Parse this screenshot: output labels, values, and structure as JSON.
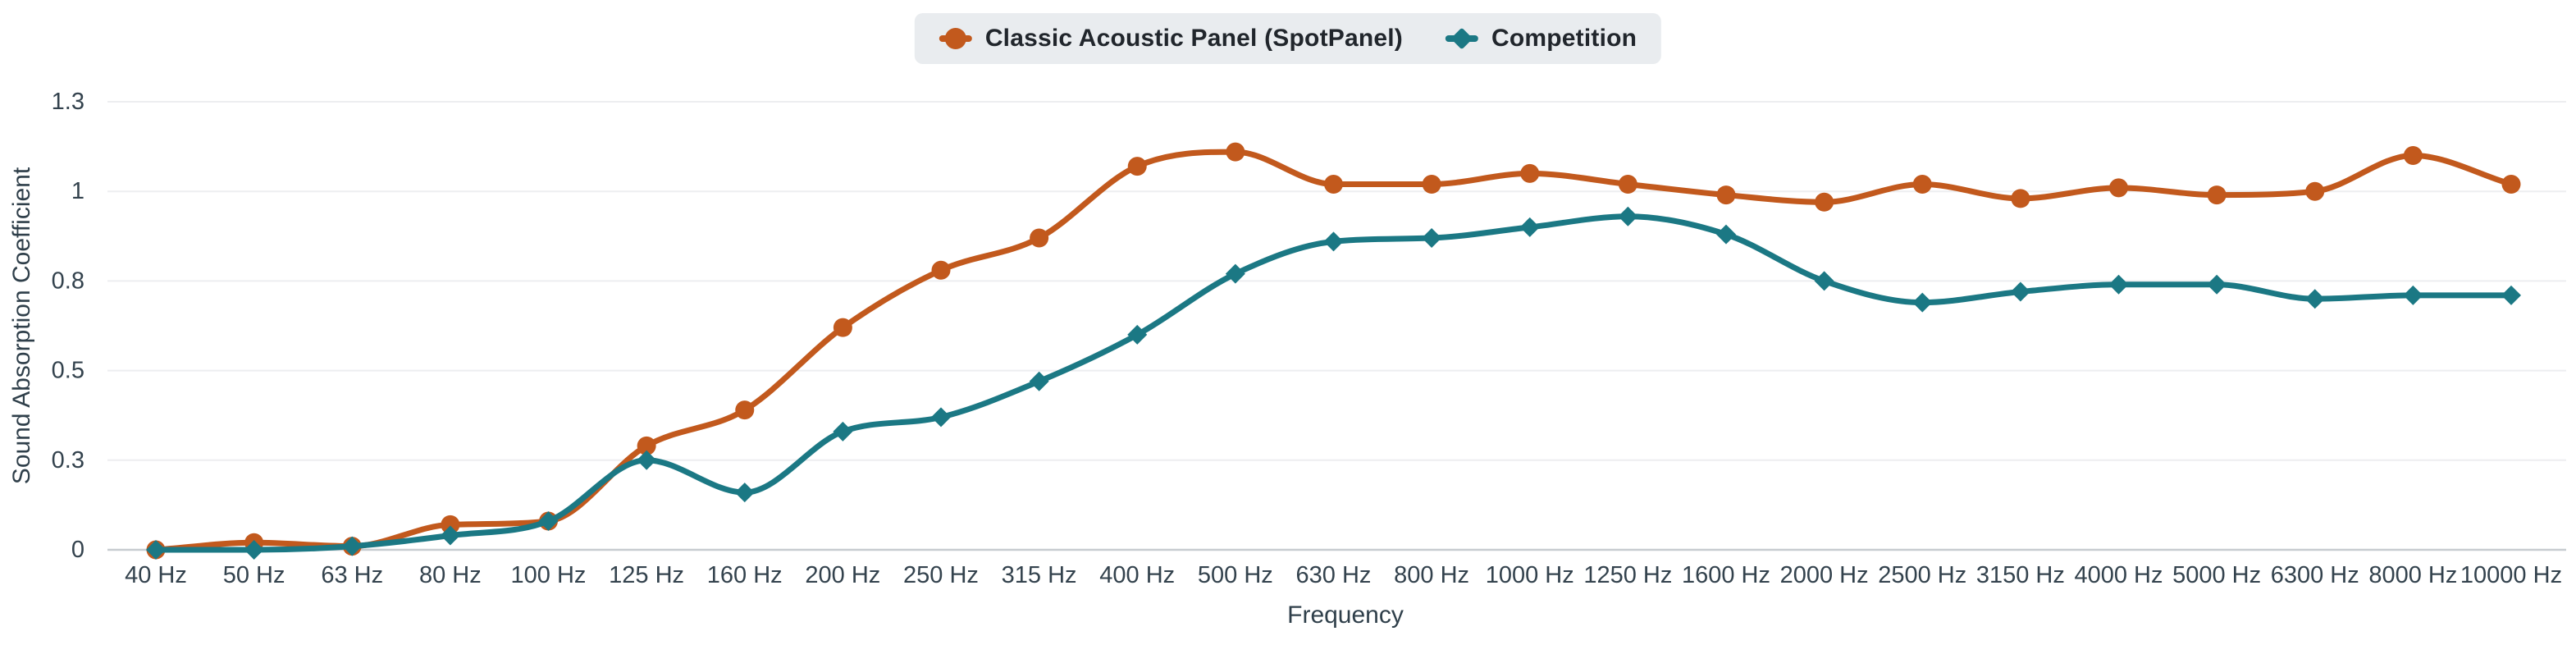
{
  "legend": {
    "items": [
      {
        "label": "Classic Acoustic Panel (SpotPanel)",
        "color": "#c2591d",
        "marker": "circle"
      },
      {
        "label": "Competition",
        "color": "#1b7884",
        "marker": "diamond"
      }
    ],
    "background": "#e9ecef",
    "text_color": "#21262c"
  },
  "chart_data": {
    "type": "line",
    "title": "",
    "xlabel": "Frequency",
    "ylabel": "Sound Absorption Coefficient",
    "categories": [
      "40 Hz",
      "50 Hz",
      "63 Hz",
      "80 Hz",
      "100 Hz",
      "125 Hz",
      "160 Hz",
      "200 Hz",
      "250 Hz",
      "315 Hz",
      "400 Hz",
      "500 Hz",
      "630 Hz",
      "800 Hz",
      "1000 Hz",
      "1250 Hz",
      "1600 Hz",
      "2000 Hz",
      "2500 Hz",
      "3150 Hz",
      "4000 Hz",
      "5000 Hz",
      "6300 Hz",
      "8000 Hz",
      "10000 Hz"
    ],
    "series": [
      {
        "name": "Classic Acoustic Panel (SpotPanel)",
        "color": "#c2591d",
        "marker": "circle",
        "values": [
          0,
          0.02,
          0.01,
          0.07,
          0.08,
          0.29,
          0.39,
          0.62,
          0.78,
          0.87,
          1.07,
          1.11,
          1.02,
          1.02,
          1.05,
          1.02,
          0.99,
          0.97,
          1.02,
          0.98,
          1.01,
          0.99,
          1.0,
          1.1,
          1.02
        ]
      },
      {
        "name": "Competition",
        "color": "#1b7884",
        "marker": "diamond",
        "values": [
          0,
          0,
          0.01,
          0.04,
          0.08,
          0.25,
          0.16,
          0.33,
          0.37,
          0.47,
          0.6,
          0.77,
          0.86,
          0.87,
          0.9,
          0.93,
          0.88,
          0.75,
          0.69,
          0.72,
          0.74,
          0.74,
          0.7,
          0.71,
          0.71
        ]
      }
    ],
    "y_ticks": [
      {
        "value": 0,
        "label": "0"
      },
      {
        "value": 0.25,
        "label": "0.3"
      },
      {
        "value": 0.5,
        "label": "0.5"
      },
      {
        "value": 0.75,
        "label": "0.8"
      },
      {
        "value": 1,
        "label": "1"
      },
      {
        "value": 1.25,
        "label": "1.3"
      }
    ],
    "ylim": [
      0,
      1.25
    ],
    "grid": true,
    "legend_position": "top",
    "curve": "monotone"
  },
  "style": {
    "grid_color": "#edeef0",
    "axis_line_color": "#c7ccd0",
    "tick_text_color": "#33424d",
    "axis_title_color": "#2f3f4a",
    "background": "#ffffff"
  }
}
